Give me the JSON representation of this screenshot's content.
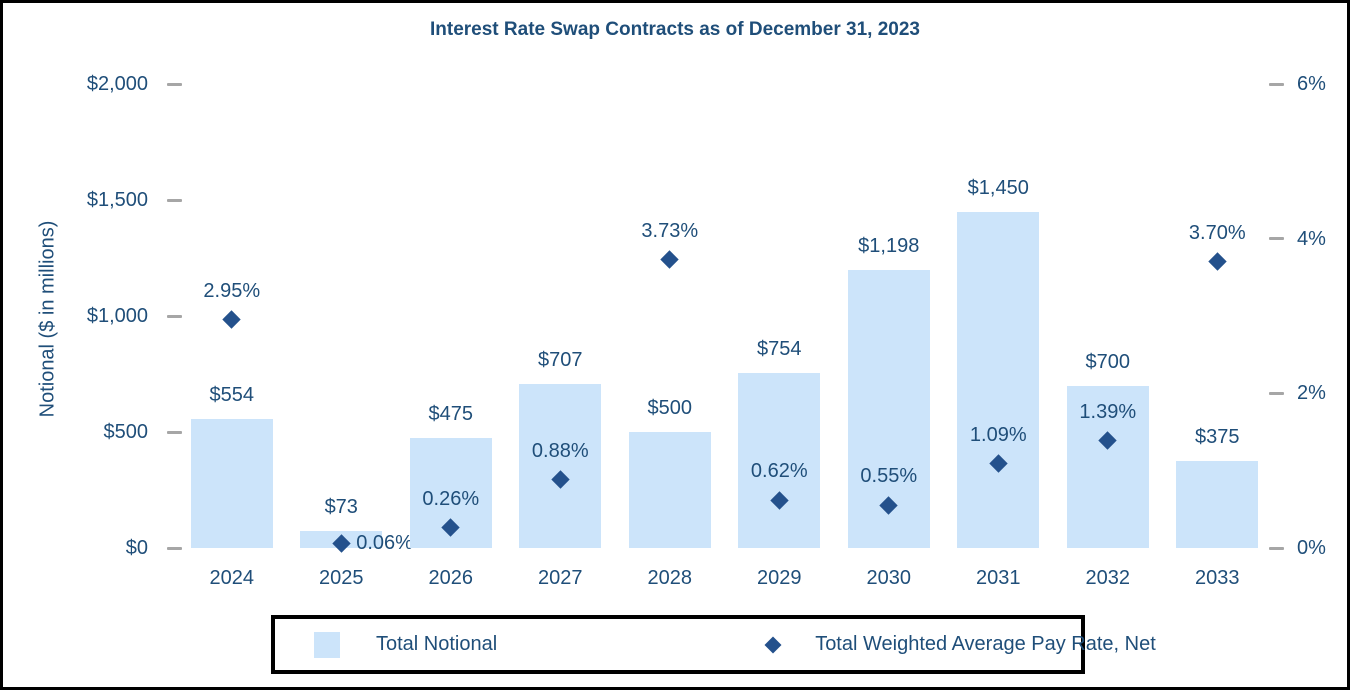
{
  "title": "Interest Rate Swap Contracts as of December 31, 2023",
  "colors": {
    "bar_fill": "#CCE4FA",
    "diamond": "#24518C",
    "text": "#1F4E79",
    "tick": "#A6A6A6",
    "border": "#000000"
  },
  "chart_data": {
    "type": "bar",
    "subtype": "combo-bar-and-diamond-scatter-dual-axis",
    "title": "Interest Rate Swap Contracts as of December 31, 2023",
    "categories": [
      "2024",
      "2025",
      "2026",
      "2027",
      "2028",
      "2029",
      "2030",
      "2031",
      "2032",
      "2033"
    ],
    "series": [
      {
        "name": "Total Notional",
        "type": "bar",
        "axis": "left",
        "values": [
          554,
          73,
          475,
          707,
          500,
          754,
          1198,
          1450,
          700,
          375
        ],
        "labels": [
          "$554",
          "$73",
          "$475",
          "$707",
          "$500",
          "$754",
          "$1,198",
          "$1,450",
          "$700",
          "$375"
        ]
      },
      {
        "name": "Total Weighted Average Pay Rate, Net",
        "type": "scatter",
        "marker": "diamond",
        "axis": "right",
        "values": [
          2.95,
          0.06,
          0.26,
          0.88,
          3.73,
          0.62,
          0.55,
          1.09,
          1.39,
          3.7
        ],
        "labels": [
          "2.95%",
          "0.06%",
          "0.26%",
          "0.88%",
          "3.73%",
          "0.62%",
          "0.55%",
          "1.09%",
          "1.39%",
          "3.70%"
        ],
        "label_side": [
          "above",
          "right",
          "above",
          "above",
          "above",
          "above",
          "above",
          "above",
          "above",
          "above"
        ]
      }
    ],
    "left_axis": {
      "title": "Notional ($ in millions)",
      "tick_labels": [
        "$2,000",
        "$1,500",
        "$1,000",
        "$500",
        "$0"
      ],
      "tick_values": [
        2000,
        1500,
        1000,
        500,
        0
      ],
      "range": [
        0,
        2000
      ]
    },
    "right_axis": {
      "title": "",
      "tick_labels": [
        "6%",
        "4%",
        "2%",
        "0%"
      ],
      "tick_values": [
        6,
        4,
        2,
        0
      ],
      "range": [
        0,
        6
      ]
    },
    "grid": false,
    "legend": {
      "position": "bottom",
      "entries": [
        {
          "label": "Total Notional",
          "swatch": "square"
        },
        {
          "label": "Total Weighted Average Pay Rate, Net",
          "swatch": "diamond"
        }
      ]
    }
  }
}
